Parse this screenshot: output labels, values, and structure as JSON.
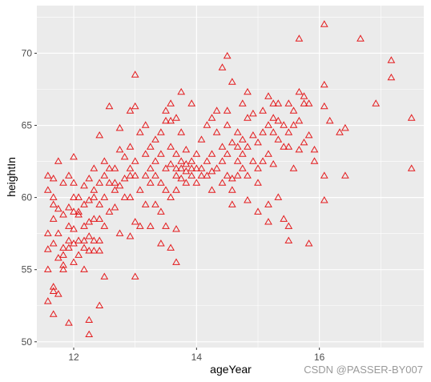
{
  "chart_data": {
    "type": "scatter",
    "xlabel": "ageYear",
    "ylabel": "heightIn",
    "xlim": [
      11.4,
      17.7
    ],
    "ylim": [
      49.6,
      73.3
    ],
    "x_ticks": [
      12,
      14,
      16
    ],
    "y_ticks": [
      50,
      55,
      60,
      65,
      70
    ],
    "grid": true,
    "marker": "open-triangle",
    "marker_color": "#e41a1c",
    "panel_background": "#ebebeb",
    "gridline_color": "#ffffff",
    "points": [
      [
        11.58,
        52.8
      ],
      [
        11.58,
        55.0
      ],
      [
        11.58,
        56.4
      ],
      [
        11.58,
        57.5
      ],
      [
        11.58,
        60.5
      ],
      [
        11.58,
        61.5
      ],
      [
        11.67,
        51.9
      ],
      [
        11.67,
        53.5
      ],
      [
        11.67,
        53.8
      ],
      [
        11.67,
        56.8
      ],
      [
        11.67,
        58.5
      ],
      [
        11.67,
        59.5
      ],
      [
        11.67,
        60.0
      ],
      [
        11.67,
        61.3
      ],
      [
        11.75,
        53.3
      ],
      [
        11.75,
        55.8
      ],
      [
        11.75,
        57.5
      ],
      [
        11.75,
        59.2
      ],
      [
        11.75,
        62.5
      ],
      [
        11.83,
        55.0
      ],
      [
        11.83,
        55.3
      ],
      [
        11.83,
        56.0
      ],
      [
        11.83,
        56.5
      ],
      [
        11.83,
        58.8
      ],
      [
        11.83,
        61.0
      ],
      [
        11.92,
        51.3
      ],
      [
        11.92,
        56.5
      ],
      [
        11.92,
        57.0
      ],
      [
        11.92,
        58.0
      ],
      [
        11.92,
        59.3
      ],
      [
        11.92,
        61.5
      ],
      [
        12.0,
        55.5
      ],
      [
        12.0,
        56.8
      ],
      [
        12.0,
        57.8
      ],
      [
        12.0,
        59.0
      ],
      [
        12.0,
        60.0
      ],
      [
        12.0,
        61.0
      ],
      [
        12.0,
        62.8
      ],
      [
        12.08,
        56.0
      ],
      [
        12.08,
        57.0
      ],
      [
        12.08,
        58.8
      ],
      [
        12.08,
        59.0
      ],
      [
        12.08,
        60.0
      ],
      [
        12.17,
        55.0
      ],
      [
        12.17,
        56.5
      ],
      [
        12.17,
        57.0
      ],
      [
        12.17,
        58.0
      ],
      [
        12.17,
        59.5
      ],
      [
        12.17,
        60.8
      ],
      [
        12.25,
        50.5
      ],
      [
        12.25,
        51.5
      ],
      [
        12.25,
        56.3
      ],
      [
        12.25,
        57.3
      ],
      [
        12.25,
        58.3
      ],
      [
        12.25,
        59.8
      ],
      [
        12.25,
        61.3
      ],
      [
        12.33,
        56.3
      ],
      [
        12.33,
        57.0
      ],
      [
        12.33,
        58.5
      ],
      [
        12.33,
        60.0
      ],
      [
        12.33,
        60.5
      ],
      [
        12.33,
        62.0
      ],
      [
        12.42,
        52.5
      ],
      [
        12.42,
        56.3
      ],
      [
        12.42,
        57.0
      ],
      [
        12.42,
        58.5
      ],
      [
        12.42,
        59.5
      ],
      [
        12.42,
        61.0
      ],
      [
        12.42,
        64.3
      ],
      [
        12.5,
        54.5
      ],
      [
        12.5,
        58.0
      ],
      [
        12.5,
        60.0
      ],
      [
        12.5,
        61.5
      ],
      [
        12.5,
        62.5
      ],
      [
        12.58,
        59.0
      ],
      [
        12.58,
        61.0
      ],
      [
        12.58,
        62.0
      ],
      [
        12.58,
        66.3
      ],
      [
        12.67,
        59.3
      ],
      [
        12.67,
        60.5
      ],
      [
        12.67,
        61.0
      ],
      [
        12.67,
        62.0
      ],
      [
        12.75,
        57.5
      ],
      [
        12.75,
        60.8
      ],
      [
        12.75,
        63.3
      ],
      [
        12.75,
        64.8
      ],
      [
        12.83,
        60.0
      ],
      [
        12.83,
        61.3
      ],
      [
        12.83,
        62.8
      ],
      [
        12.92,
        57.3
      ],
      [
        12.92,
        60.0
      ],
      [
        12.92,
        61.5
      ],
      [
        12.92,
        62.0
      ],
      [
        12.92,
        63.5
      ],
      [
        12.92,
        66.0
      ],
      [
        13.0,
        54.5
      ],
      [
        13.0,
        58.3
      ],
      [
        13.0,
        61.5
      ],
      [
        13.0,
        62.5
      ],
      [
        13.0,
        66.3
      ],
      [
        13.0,
        68.5
      ],
      [
        13.08,
        58.0
      ],
      [
        13.08,
        60.5
      ],
      [
        13.08,
        64.5
      ],
      [
        13.17,
        59.5
      ],
      [
        13.17,
        61.5
      ],
      [
        13.17,
        63.0
      ],
      [
        13.17,
        65.0
      ],
      [
        13.25,
        58.0
      ],
      [
        13.25,
        61.0
      ],
      [
        13.25,
        62.0
      ],
      [
        13.25,
        63.5
      ],
      [
        13.33,
        59.5
      ],
      [
        13.33,
        61.5
      ],
      [
        13.33,
        62.5
      ],
      [
        13.33,
        64.0
      ],
      [
        13.42,
        56.8
      ],
      [
        13.42,
        59.0
      ],
      [
        13.42,
        61.0
      ],
      [
        13.42,
        63.0
      ],
      [
        13.42,
        64.5
      ],
      [
        13.5,
        58.0
      ],
      [
        13.5,
        60.5
      ],
      [
        13.5,
        62.0
      ],
      [
        13.5,
        65.3
      ],
      [
        13.5,
        66.0
      ],
      [
        13.58,
        56.5
      ],
      [
        13.58,
        60.0
      ],
      [
        13.58,
        62.3
      ],
      [
        13.58,
        63.5
      ],
      [
        13.58,
        65.3
      ],
      [
        13.58,
        66.5
      ],
      [
        13.67,
        55.5
      ],
      [
        13.67,
        57.8
      ],
      [
        13.67,
        60.5
      ],
      [
        13.67,
        61.5
      ],
      [
        13.67,
        62.0
      ],
      [
        13.67,
        63.0
      ],
      [
        13.67,
        65.5
      ],
      [
        13.75,
        61.3
      ],
      [
        13.75,
        62.0
      ],
      [
        13.75,
        62.5
      ],
      [
        13.75,
        64.5
      ],
      [
        13.75,
        67.3
      ],
      [
        13.83,
        61.0
      ],
      [
        13.83,
        61.8
      ],
      [
        13.83,
        62.3
      ],
      [
        13.83,
        63.3
      ],
      [
        13.92,
        61.5
      ],
      [
        13.92,
        62.0
      ],
      [
        13.92,
        62.5
      ],
      [
        13.92,
        66.5
      ],
      [
        14.0,
        61.0
      ],
      [
        14.0,
        62.0
      ],
      [
        14.0,
        63.0
      ],
      [
        14.08,
        61.5
      ],
      [
        14.08,
        62.0
      ],
      [
        14.08,
        64.0
      ],
      [
        14.17,
        61.5
      ],
      [
        14.17,
        62.5
      ],
      [
        14.17,
        65.0
      ],
      [
        14.25,
        60.5
      ],
      [
        14.25,
        61.8
      ],
      [
        14.25,
        63.0
      ],
      [
        14.25,
        65.5
      ],
      [
        14.33,
        62.0
      ],
      [
        14.33,
        64.5
      ],
      [
        14.33,
        66.0
      ],
      [
        14.42,
        61.0
      ],
      [
        14.42,
        62.5
      ],
      [
        14.42,
        63.5
      ],
      [
        14.42,
        69.0
      ],
      [
        14.5,
        61.5
      ],
      [
        14.5,
        63.0
      ],
      [
        14.5,
        65.0
      ],
      [
        14.5,
        66.0
      ],
      [
        14.5,
        69.8
      ],
      [
        14.58,
        59.5
      ],
      [
        14.58,
        60.5
      ],
      [
        14.58,
        61.3
      ],
      [
        14.58,
        63.8
      ],
      [
        14.58,
        68.0
      ],
      [
        14.67,
        61.5
      ],
      [
        14.67,
        62.5
      ],
      [
        14.67,
        63.5
      ],
      [
        14.67,
        64.5
      ],
      [
        14.75,
        62.0
      ],
      [
        14.75,
        63.0
      ],
      [
        14.75,
        64.0
      ],
      [
        14.75,
        66.5
      ],
      [
        14.83,
        59.8
      ],
      [
        14.83,
        61.5
      ],
      [
        14.83,
        63.5
      ],
      [
        14.83,
        65.5
      ],
      [
        14.83,
        67.3
      ],
      [
        14.92,
        62.5
      ],
      [
        14.92,
        64.3
      ],
      [
        14.92,
        65.8
      ],
      [
        15.0,
        59.0
      ],
      [
        15.0,
        61.0
      ],
      [
        15.0,
        62.0
      ],
      [
        15.0,
        63.8
      ],
      [
        15.08,
        62.5
      ],
      [
        15.08,
        64.5
      ],
      [
        15.08,
        66.0
      ],
      [
        15.17,
        58.3
      ],
      [
        15.17,
        59.5
      ],
      [
        15.17,
        63.0
      ],
      [
        15.17,
        65.0
      ],
      [
        15.17,
        67.0
      ],
      [
        15.25,
        62.3
      ],
      [
        15.25,
        64.5
      ],
      [
        15.25,
        65.5
      ],
      [
        15.25,
        66.5
      ],
      [
        15.33,
        60.0
      ],
      [
        15.33,
        64.0
      ],
      [
        15.33,
        65.3
      ],
      [
        15.33,
        66.5
      ],
      [
        15.42,
        58.5
      ],
      [
        15.42,
        63.5
      ],
      [
        15.42,
        65.0
      ],
      [
        15.5,
        57.0
      ],
      [
        15.5,
        58.0
      ],
      [
        15.5,
        63.5
      ],
      [
        15.5,
        64.5
      ],
      [
        15.5,
        66.5
      ],
      [
        15.58,
        62.0
      ],
      [
        15.58,
        65.0
      ],
      [
        15.58,
        66.0
      ],
      [
        15.67,
        63.3
      ],
      [
        15.67,
        65.3
      ],
      [
        15.67,
        67.3
      ],
      [
        15.67,
        71.0
      ],
      [
        15.75,
        63.8
      ],
      [
        15.75,
        66.5
      ],
      [
        15.75,
        67.0
      ],
      [
        15.83,
        56.8
      ],
      [
        15.83,
        64.3
      ],
      [
        15.83,
        66.5
      ],
      [
        15.92,
        62.5
      ],
      [
        15.92,
        63.3
      ],
      [
        16.08,
        59.8
      ],
      [
        16.08,
        61.5
      ],
      [
        16.08,
        66.3
      ],
      [
        16.08,
        67.8
      ],
      [
        16.08,
        72.0
      ],
      [
        16.17,
        65.3
      ],
      [
        16.33,
        64.5
      ],
      [
        16.42,
        61.5
      ],
      [
        16.42,
        64.8
      ],
      [
        16.67,
        71.0
      ],
      [
        16.92,
        66.5
      ],
      [
        17.17,
        68.3
      ],
      [
        17.17,
        69.5
      ],
      [
        17.5,
        62.0
      ],
      [
        17.5,
        65.5
      ]
    ]
  },
  "watermark": "CSDN @PASSER-BY007"
}
